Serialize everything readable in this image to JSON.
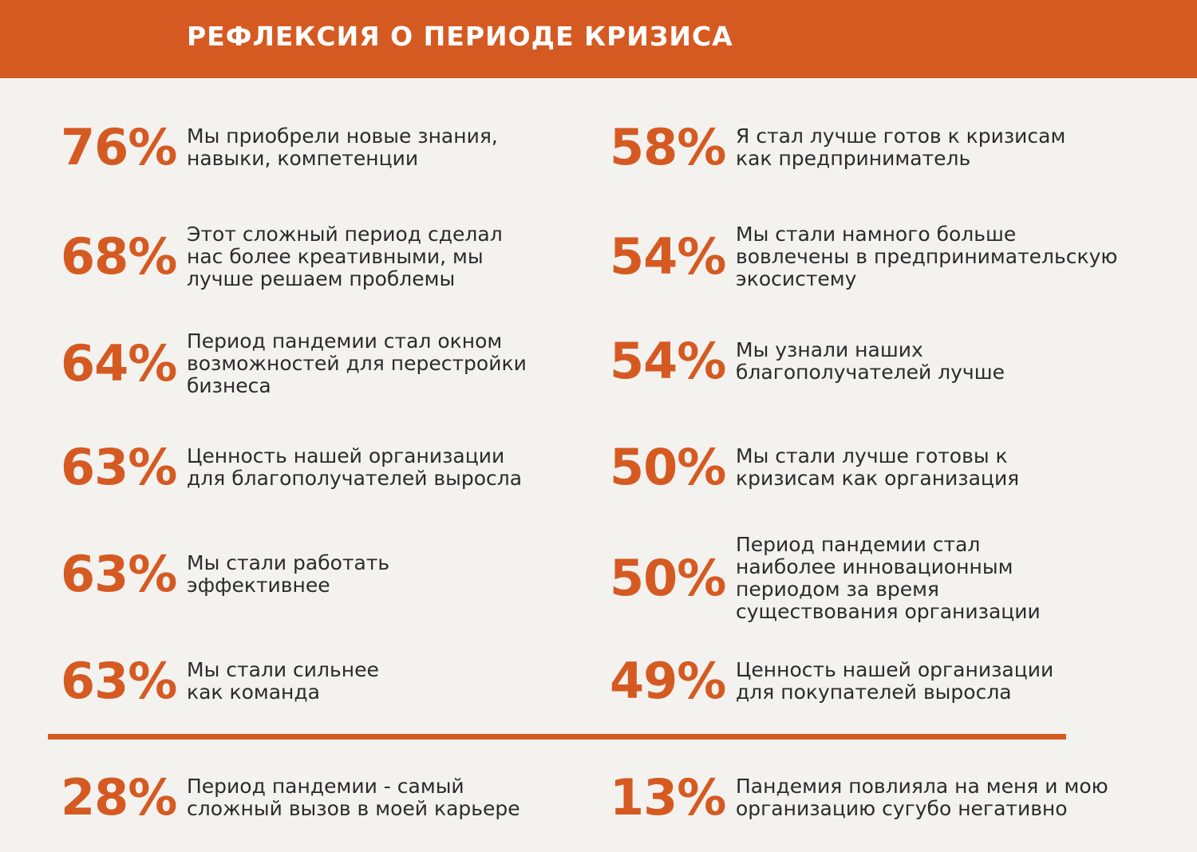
{
  "header": {
    "title": "РЕФЛЕКСИЯ О ПЕРИОДЕ КРИЗИСА"
  },
  "colors": {
    "accent": "#d55a22",
    "background": "#f3f2ef",
    "text": "#2b2b2b"
  },
  "left_stats": [
    {
      "percent": "76%",
      "text": "Мы приобрели новые знания,\nнавыки, компетенции"
    },
    {
      "percent": "68%",
      "text": "Этот сложный период сделал\nнас более креативными, мы\nлучше решаем проблемы"
    },
    {
      "percent": "64%",
      "text": "Период пандемии стал окном\nвозможностей для  перестройки\nбизнеса"
    },
    {
      "percent": "63%",
      "text": "Ценность нашей организации\nдля благополучателей выросла"
    },
    {
      "percent": "63%",
      "text": "Мы стали работать\nэффективнее"
    },
    {
      "percent": "63%",
      "text": "Мы стали сильнее\nкак команда"
    }
  ],
  "right_stats": [
    {
      "percent": "58%",
      "text": "Я стал лучше готов к кризисам\nкак предприниматель"
    },
    {
      "percent": "54%",
      "text": "Мы стали намного больше\nвовлечены в предпринимательскую\nэкосистему"
    },
    {
      "percent": "54%",
      "text": "Мы узнали наших\nблагополучателей лучше"
    },
    {
      "percent": "50%",
      "text": "Мы стали лучше готовы к\nкризисам как организация"
    },
    {
      "percent": "50%",
      "text": "Период пандемии стал\nнаиболее инновационным\nпериодом за время\nсуществования организации"
    },
    {
      "percent": "49%",
      "text": "Ценность нашей организации\nдля покупателей выросла"
    }
  ],
  "bottom_stats": {
    "left": {
      "percent": "28%",
      "text": "Период пандемии - самый\nсложный вызов в моей карьере"
    },
    "right": {
      "percent": "13%",
      "text": "Пандемия повлияла на меня и мою\nорганизацию сугубо негативно"
    }
  }
}
